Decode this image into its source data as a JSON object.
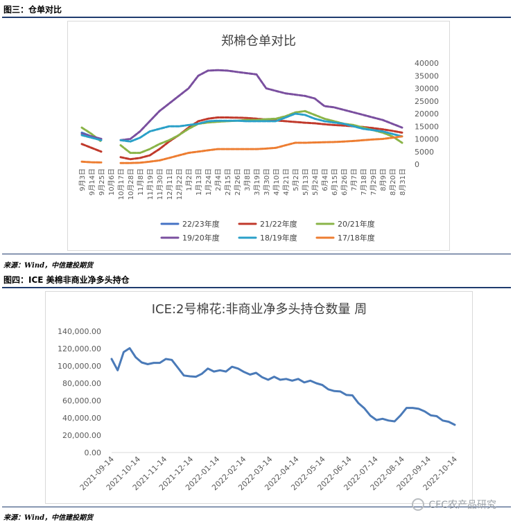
{
  "section1": {
    "title": "图三：仓单对比",
    "source": "来源：Wind，中信建投期货"
  },
  "section2": {
    "title": "图四：ICE 美棉非商业净多头持仓",
    "source": "来源：Wind，中信建投期货"
  },
  "watermark": {
    "text": "CFC农产品研究"
  },
  "chart_data": [
    {
      "type": "line",
      "title": "郑棉仓单对比",
      "categories": [
        "9月3日",
        "9月14日",
        "9月25日",
        "10月6日",
        "10月17日",
        "10月28日",
        "11月8日",
        "11月19日",
        "11月30日",
        "12月11日",
        "12月22日",
        "1月2日",
        "1月13日",
        "1月24日",
        "2月4日",
        "2月15日",
        "2月26日",
        "3月8日",
        "3月19日",
        "3月30日",
        "4月10日",
        "4月21日",
        "5月2日",
        "5月13日",
        "5月24日",
        "6月4日",
        "6月15日",
        "6月26日",
        "7月7日",
        "7月18日",
        "7月29日",
        "8月9日",
        "8月20日",
        "8月31日"
      ],
      "y_ticks": [
        "0",
        "5000",
        "10000",
        "15000",
        "20000",
        "25000",
        "30000",
        "35000",
        "40000"
      ],
      "ylim": [
        0,
        40000
      ],
      "legend_position": "bottom",
      "series": [
        {
          "name": "22/23年度",
          "color": "#4472c4",
          "values": [
            12500,
            11000,
            10000,
            null,
            null,
            null,
            null,
            null,
            null,
            null,
            null,
            null,
            null,
            null,
            null,
            null,
            null,
            null,
            null,
            null,
            null,
            null,
            null,
            null,
            null,
            null,
            null,
            null,
            null,
            null,
            null,
            null,
            null,
            null
          ]
        },
        {
          "name": "21/22年度",
          "color": "#c0392b",
          "values": [
            8000,
            6500,
            5000,
            null,
            2800,
            2000,
            2500,
            3500,
            6000,
            9000,
            11500,
            14500,
            17000,
            18000,
            18500,
            18500,
            18400,
            18300,
            18000,
            17700,
            17300,
            17000,
            16700,
            16400,
            16200,
            15800,
            15500,
            15300,
            15000,
            14700,
            14300,
            13800,
            13200,
            12500
          ]
        },
        {
          "name": "20/21年度",
          "color": "#8ab448",
          "values": [
            14500,
            12000,
            9000,
            null,
            7500,
            4500,
            4500,
            6000,
            8000,
            9500,
            11500,
            14000,
            16000,
            16500,
            16800,
            17000,
            17200,
            17500,
            17500,
            17800,
            18000,
            19000,
            20500,
            21000,
            19500,
            18000,
            17000,
            16000,
            15500,
            14500,
            13500,
            12500,
            11000,
            8500
          ]
        },
        {
          "name": "19/20年度",
          "color": "#7a4f9f",
          "values": [
            12000,
            11000,
            10000,
            null,
            9500,
            10000,
            13000,
            17000,
            21000,
            24000,
            27000,
            30000,
            35000,
            37000,
            37200,
            37000,
            36500,
            36000,
            35500,
            30000,
            29000,
            28000,
            27500,
            27000,
            26000,
            23000,
            22500,
            21500,
            20500,
            19500,
            18500,
            17500,
            16000,
            14500
          ]
        },
        {
          "name": "18/19年度",
          "color": "#2aa0c8",
          "values": [
            11500,
            10500,
            9500,
            null,
            9500,
            9000,
            10500,
            13000,
            14000,
            15000,
            15000,
            15500,
            16000,
            17000,
            17200,
            17200,
            17200,
            17000,
            17000,
            17000,
            17000,
            18500,
            20000,
            19500,
            18000,
            17000,
            16500,
            16000,
            15000,
            14000,
            13500,
            13000,
            12000,
            11000
          ]
        },
        {
          "name": "17/18年度",
          "color": "#ed7d31",
          "values": [
            1000,
            800,
            700,
            null,
            500,
            500,
            600,
            1000,
            1500,
            2500,
            3500,
            4500,
            5000,
            5500,
            6000,
            6000,
            6000,
            6000,
            6000,
            6200,
            6500,
            7500,
            8500,
            8500,
            8600,
            8700,
            8800,
            9000,
            9200,
            9500,
            9800,
            10000,
            10500,
            11000
          ]
        }
      ]
    },
    {
      "type": "line",
      "title": "ICE:2号棉花:非商业净多头持仓数量 周",
      "x_ticks": [
        "2021-09-14",
        "2021-10-14",
        "2021-11-14",
        "2021-12-14",
        "2022-01-14",
        "2022-02-14",
        "2022-03-14",
        "2022-04-14",
        "2022-05-14",
        "2022-06-14",
        "2022-07-14",
        "2022-08-14",
        "2022-09-14",
        "2022-10-14"
      ],
      "y_ticks": [
        "0.00",
        "20,000.00",
        "40,000.00",
        "60,000.00",
        "80,000.00",
        "100,000.00",
        "120,000.00",
        "140,000.00"
      ],
      "ylim": [
        0,
        140000
      ],
      "series": [
        {
          "name": "",
          "color": "#4a7ab8",
          "values": [
            108000,
            95000,
            116000,
            120500,
            110000,
            104000,
            102000,
            103500,
            103500,
            108000,
            107000,
            98000,
            89000,
            88000,
            87500,
            91000,
            97000,
            93500,
            95000,
            93500,
            99000,
            97000,
            93000,
            90000,
            92000,
            87000,
            84000,
            87500,
            84000,
            85000,
            83000,
            85000,
            81000,
            83000,
            80000,
            78000,
            73000,
            71000,
            70500,
            66500,
            66000,
            57000,
            51000,
            42500,
            37500,
            39000,
            37000,
            36000,
            43000,
            51500,
            51500,
            50500,
            47500,
            43000,
            42000,
            37000,
            35500,
            32000
          ]
        }
      ]
    }
  ]
}
